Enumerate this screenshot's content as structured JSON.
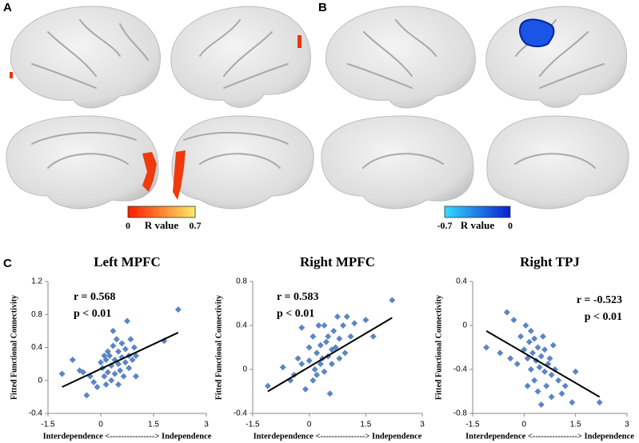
{
  "figure": {
    "panel_labels": [
      "A",
      "B",
      "C"
    ],
    "colorbars": [
      {
        "label": "R value",
        "lim": [
          0,
          0.7
        ],
        "ticks": [
          0,
          0.7
        ],
        "colors": [
          "#ff1a00",
          "#ffee66"
        ]
      },
      {
        "label": "R value",
        "lim": [
          -0.7,
          0
        ],
        "ticks": [
          -0.7,
          0
        ],
        "colors": [
          "#33ddff",
          "#0a1ecc"
        ]
      }
    ]
  },
  "chart_data": [
    {
      "type": "scatter",
      "title": "Left MPFC",
      "annotations": [
        "r = 0.568",
        "p < 0.01"
      ],
      "xlabel": "Interdependence <----------------> Independence",
      "ylabel": "Fitted Functional Connectivity",
      "xlim": [
        -1.5,
        3
      ],
      "xticks": [
        -1.5,
        0,
        1.5,
        3
      ],
      "ylim": [
        -0.4,
        1.2
      ],
      "yticks": [
        -0.4,
        0,
        0.4,
        0.8,
        1.2
      ],
      "color": "#5b86c2",
      "x": [
        -1.1,
        -0.8,
        -0.6,
        -0.5,
        -0.4,
        -0.3,
        -0.2,
        0,
        0.05,
        0.1,
        0.15,
        0.2,
        0.2,
        0.25,
        0.3,
        0.3,
        0.35,
        0.4,
        0.4,
        0.45,
        0.5,
        0.5,
        0.55,
        0.6,
        0.6,
        0.65,
        0.7,
        0.7,
        0.75,
        0.8,
        0.8,
        0.85,
        0.9,
        0.95,
        1.0,
        1.0,
        0.5,
        0.35,
        0.1,
        1.8,
        2.2,
        -0.1,
        0.15
      ],
      "values": [
        0.08,
        0.25,
        0.12,
        0.1,
        -0.18,
        0.05,
        -0.02,
        0.22,
        0.15,
        0.05,
        -0.05,
        0.35,
        0.1,
        0.3,
        0.0,
        0.18,
        0.42,
        0.25,
        0.08,
        0.5,
        0.2,
        0.35,
        0.12,
        0.28,
        0.45,
        0.05,
        0.38,
        0.22,
        0.72,
        0.3,
        0.15,
        0.5,
        0.25,
        0.4,
        0.3,
        0.05,
        -0.05,
        0.6,
        0.3,
        0.48,
        0.86,
        -0.08,
        0.25
      ],
      "fit": {
        "x": [
          -1.1,
          2.2
        ],
        "values": [
          -0.08,
          0.58
        ]
      }
    },
    {
      "type": "scatter",
      "title": "Right MPFC",
      "annotations": [
        "r = 0.583",
        "p < 0.01"
      ],
      "xlabel": "Interdependence <----------------> Independence",
      "ylabel": "Fitted Functional Connectivity",
      "xlim": [
        -1.5,
        3
      ],
      "xticks": [
        -1.5,
        0,
        1.5,
        3
      ],
      "ylim": [
        -0.4,
        0.8
      ],
      "yticks": [
        -0.4,
        0,
        0.4,
        0.8
      ],
      "color": "#5b86c2",
      "x": [
        -1.1,
        -0.7,
        -0.5,
        -0.4,
        -0.3,
        -0.2,
        -0.1,
        0,
        0,
        0.1,
        0.1,
        0.2,
        0.2,
        0.25,
        0.3,
        0.3,
        0.35,
        0.4,
        0.4,
        0.45,
        0.5,
        0.5,
        0.55,
        0.6,
        0.6,
        0.65,
        0.7,
        0.75,
        0.8,
        0.8,
        0.9,
        0.95,
        1.0,
        1.1,
        1.2,
        1.5,
        1.7,
        2.2,
        0.15,
        -0.2
      ],
      "values": [
        -0.15,
        0.02,
        -0.1,
        -0.05,
        0.1,
        0.38,
        -0.18,
        0.08,
        0.2,
        -0.1,
        0.3,
        0.15,
        -0.05,
        0.4,
        0.05,
        0.22,
        0.1,
        0.4,
        -0.02,
        0.25,
        0.12,
        0.3,
        -0.22,
        0.18,
        0.05,
        0.35,
        0.2,
        0.48,
        0.1,
        0.28,
        0.4,
        0.15,
        0.48,
        0.3,
        0.42,
        0.45,
        0.3,
        0.63,
        0.0,
        0.05
      ],
      "fit": {
        "x": [
          -1.1,
          2.2
        ],
        "values": [
          -0.2,
          0.47
        ]
      }
    },
    {
      "type": "scatter",
      "title": "Right TPJ",
      "annotations": [
        "r = -0.523",
        "p < 0.01"
      ],
      "xlabel": "Interdependence <----------------> Independence",
      "ylabel": "Fitted Functional Connectivity",
      "xlim": [
        -1.5,
        3
      ],
      "xticks": [
        -1.5,
        0,
        1.5,
        3
      ],
      "ylim": [
        -0.8,
        0.4
      ],
      "yticks": [
        -0.8,
        -0.4,
        0,
        0.4
      ],
      "color": "#5b86c2",
      "x": [
        -1.1,
        -0.7,
        -0.5,
        -0.4,
        -0.3,
        -0.2,
        -0.1,
        0,
        0.05,
        0.1,
        0.15,
        0.2,
        0.2,
        0.25,
        0.3,
        0.3,
        0.35,
        0.4,
        0.4,
        0.45,
        0.5,
        0.5,
        0.55,
        0.6,
        0.6,
        0.65,
        0.7,
        0.75,
        0.8,
        0.8,
        0.85,
        0.9,
        1.0,
        1.1,
        1.2,
        1.5,
        1.4,
        2.2,
        0.1
      ],
      "values": [
        -0.2,
        -0.25,
        0.12,
        -0.3,
        0.05,
        -0.35,
        -0.1,
        -0.22,
        0.0,
        -0.3,
        -0.15,
        -0.4,
        -0.05,
        -0.25,
        -0.5,
        -0.12,
        -0.32,
        -0.2,
        -0.6,
        -0.38,
        -0.28,
        -0.72,
        -0.1,
        -0.42,
        -0.22,
        -0.55,
        -0.35,
        -0.3,
        -0.45,
        -0.65,
        -0.18,
        -0.4,
        -0.5,
        -0.62,
        -0.55,
        -0.42,
        -0.7,
        -0.7,
        -0.55
      ],
      "fit": {
        "x": [
          -1.1,
          2.2
        ],
        "values": [
          -0.05,
          -0.65
        ]
      }
    }
  ]
}
